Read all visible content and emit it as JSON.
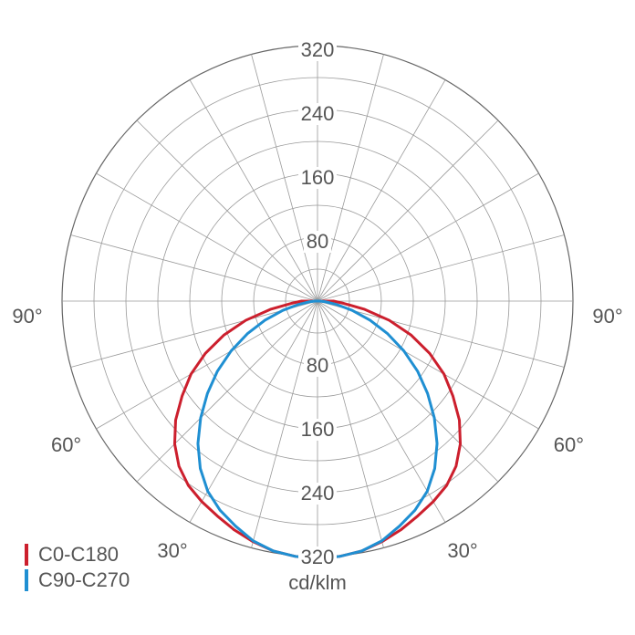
{
  "chart_data": {
    "type": "polar",
    "unit_label": "cd/klm",
    "r_max": 320,
    "ring_values": [
      40,
      80,
      120,
      160,
      200,
      240,
      280,
      320
    ],
    "ring_labels_top": [
      "80",
      "160",
      "240",
      "320"
    ],
    "ring_labels_bottom": [
      "80",
      "160",
      "240",
      "320"
    ],
    "spoke_step_deg": 15,
    "angle_labels": [
      {
        "text": "90°",
        "angle": 90
      },
      {
        "text": "90°",
        "angle": -90
      },
      {
        "text": "60°",
        "angle": 60
      },
      {
        "text": "60°",
        "angle": -60
      },
      {
        "text": "30°",
        "angle": 30
      },
      {
        "text": "30°",
        "angle": -30
      }
    ],
    "series": [
      {
        "name": "C0-C180",
        "color": "#cc1f2d",
        "angles": [
          0,
          5,
          10,
          15,
          20,
          25,
          30,
          35,
          40,
          45,
          50,
          55,
          60,
          65,
          70,
          75,
          80,
          85,
          90
        ],
        "values": [
          323,
          321,
          318,
          312,
          305,
          297,
          290,
          282,
          270,
          253,
          232,
          207,
          183,
          155,
          125,
          93,
          60,
          33,
          20
        ]
      },
      {
        "name": "C90-C270",
        "color": "#1f8fd2",
        "angles": [
          0,
          5,
          10,
          15,
          20,
          25,
          30,
          35,
          40,
          45,
          50,
          55,
          60,
          65,
          70,
          75,
          80,
          85,
          90
        ],
        "values": [
          323,
          321,
          318,
          311,
          300,
          289,
          275,
          256,
          233,
          207,
          180,
          153,
          125,
          97,
          70,
          45,
          24,
          10,
          3
        ]
      }
    ]
  }
}
